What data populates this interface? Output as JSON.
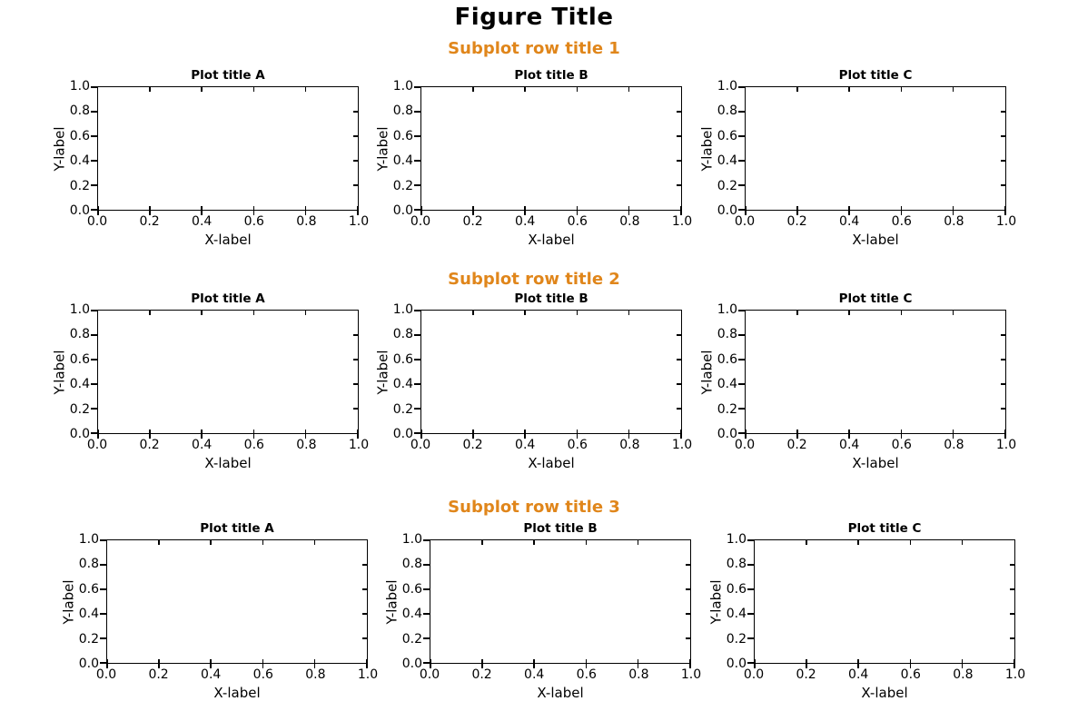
{
  "chart_data": {
    "type": "subplot-grid",
    "figure_title": "Figure Title",
    "grid_rows": 3,
    "grid_cols": 3,
    "xlim": [
      0.0,
      1.0
    ],
    "ylim": [
      0.0,
      1.0
    ],
    "xticks": [
      0.0,
      0.2,
      0.4,
      0.6,
      0.8,
      1.0
    ],
    "yticks": [
      0.0,
      0.2,
      0.4,
      0.6,
      0.8,
      1.0
    ],
    "xtick_labels": [
      "0.0",
      "0.2",
      "0.4",
      "0.6",
      "0.8",
      "1.0"
    ],
    "ytick_labels": [
      "0.0",
      "0.2",
      "0.4",
      "0.6",
      "0.8",
      "1.0"
    ],
    "grid_lines": false,
    "legend": null,
    "rows": [
      {
        "row_title": "Subplot row title 1",
        "plots": [
          {
            "type": "line",
            "title": "Plot title A",
            "xlabel": "X-label",
            "ylabel": "Y-label",
            "series": []
          },
          {
            "type": "line",
            "title": "Plot title B",
            "xlabel": "X-label",
            "ylabel": "Y-label",
            "series": []
          },
          {
            "type": "line",
            "title": "Plot title C",
            "xlabel": "X-label",
            "ylabel": "Y-label",
            "series": []
          }
        ]
      },
      {
        "row_title": "Subplot row title 2",
        "plots": [
          {
            "type": "line",
            "title": "Plot title A",
            "xlabel": "X-label",
            "ylabel": "Y-label",
            "series": []
          },
          {
            "type": "line",
            "title": "Plot title B",
            "xlabel": "X-label",
            "ylabel": "Y-label",
            "series": []
          },
          {
            "type": "line",
            "title": "Plot title C",
            "xlabel": "X-label",
            "ylabel": "Y-label",
            "series": []
          }
        ]
      },
      {
        "row_title": "Subplot row title 3",
        "plots": [
          {
            "type": "line",
            "title": "Plot title A",
            "xlabel": "X-label",
            "ylabel": "Y-label",
            "series": []
          },
          {
            "type": "line",
            "title": "Plot title B",
            "xlabel": "X-label",
            "ylabel": "Y-label",
            "series": []
          },
          {
            "type": "line",
            "title": "Plot title C",
            "xlabel": "X-label",
            "ylabel": "Y-label",
            "series": []
          }
        ]
      }
    ],
    "style": {
      "figure_title_color": "#000000",
      "row_title_color": "#E0861B",
      "axes_color": "#000000",
      "text_color": "#000000",
      "background": "#FFFFFF"
    }
  }
}
